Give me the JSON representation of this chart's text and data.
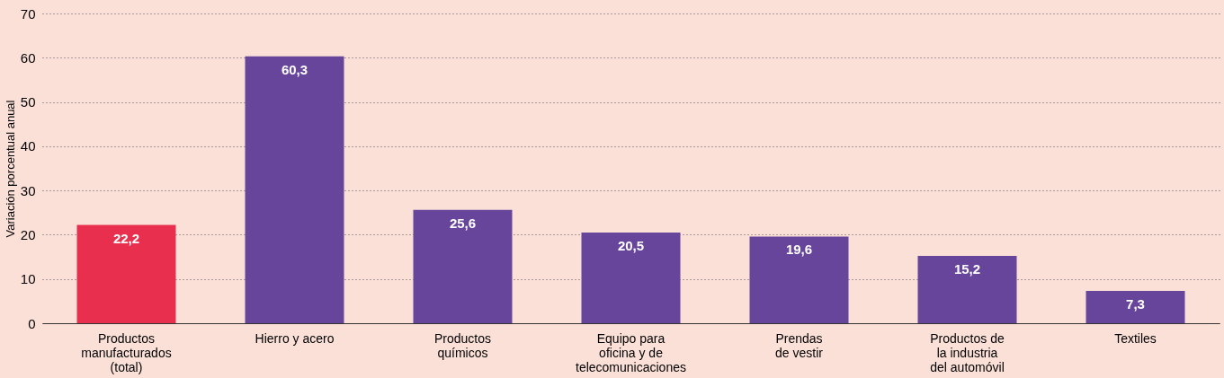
{
  "chart_data": {
    "type": "bar",
    "ylabel": "Variación porcentual anual",
    "categories": [
      "Productos\nmanufacturados\n(total)",
      "Hierro y acero",
      "Productos\nquímicos",
      "Equipo para\noficina y de\ntelecomunicaciones",
      "Prendas\nde vestir",
      "Productos de\nla industria\ndel automóvil",
      "Textiles"
    ],
    "values": [
      22.2,
      60.3,
      25.6,
      20.5,
      19.6,
      15.2,
      7.3
    ],
    "colors": [
      "#e8304e",
      "#67459b",
      "#67459b",
      "#67459b",
      "#67459b",
      "#67459b",
      "#67459b"
    ],
    "value_labels": [
      "22,2",
      "60,3",
      "25,6",
      "20,5",
      "19,6",
      "15,2",
      "7,3"
    ],
    "ylim": [
      0,
      70
    ],
    "yticks": [
      0,
      10,
      20,
      30,
      40,
      50,
      60,
      70
    ],
    "grid": "y"
  }
}
